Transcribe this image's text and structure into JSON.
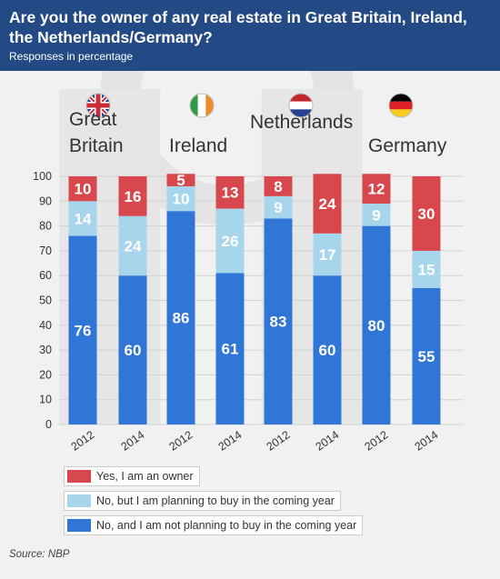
{
  "header": {
    "title": "Are you the owner of any real estate in Great Britain, Ireland, the Netherlands/Germany?",
    "subtitle": "Responses in percentage"
  },
  "colors": {
    "owner": "#d8474c",
    "planning": "#a7d6ec",
    "not_planning": "#2f76d6",
    "header_bg": "#234a85"
  },
  "chart_data": {
    "type": "bar",
    "stacked": true,
    "ylim": [
      0,
      100
    ],
    "yticks": [
      0,
      10,
      20,
      30,
      40,
      50,
      60,
      70,
      80,
      90,
      100
    ],
    "groups": [
      {
        "country": "Great Britain",
        "lines": [
          "Great",
          "Britain"
        ],
        "flag": "uk-flag-icon"
      },
      {
        "country": "Ireland",
        "lines": [
          "Ireland"
        ],
        "flag": "ireland-flag-icon"
      },
      {
        "country": "Netherlands",
        "lines": [
          "Netherlands"
        ],
        "flag": "netherlands-flag-icon"
      },
      {
        "country": "Germany",
        "lines": [
          "Germany"
        ],
        "flag": "germany-flag-icon"
      }
    ],
    "categories": [
      "2012",
      "2014",
      "2012",
      "2014",
      "2012",
      "2014",
      "2012",
      "2014"
    ],
    "series": [
      {
        "name": "No, and I am not planning to buy in the coming year",
        "key": "not_planning",
        "values": [
          76,
          60,
          86,
          61,
          83,
          60,
          80,
          55
        ]
      },
      {
        "name": "No, but I am planning to buy in the coming year",
        "key": "planning",
        "values": [
          14,
          24,
          10,
          26,
          9,
          17,
          9,
          15
        ]
      },
      {
        "name": "Yes, I am an owner",
        "key": "owner",
        "values": [
          10,
          16,
          5,
          13,
          8,
          24,
          12,
          30
        ]
      }
    ]
  },
  "legend": [
    {
      "label": "Yes, I am an owner",
      "key": "owner"
    },
    {
      "label": "No, but I am planning to buy in the coming year",
      "key": "planning"
    },
    {
      "label": "No, and I am not planning to buy in the coming year",
      "key": "not_planning"
    }
  ],
  "source": "Source: NBP"
}
